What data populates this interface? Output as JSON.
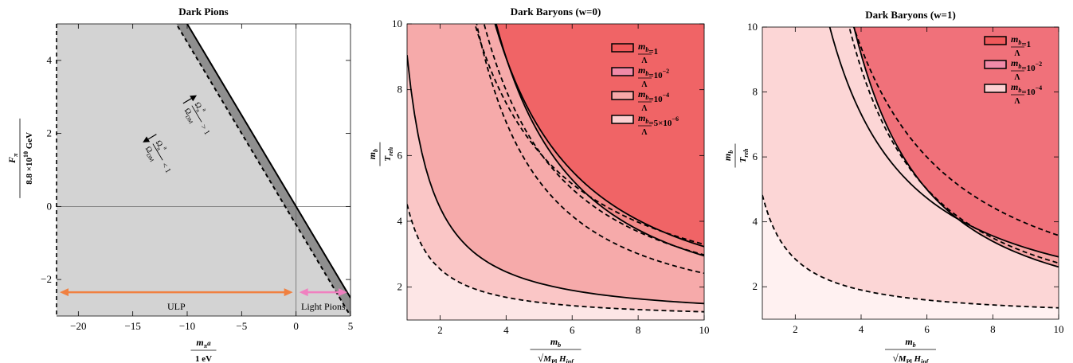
{
  "chart_data": [
    {
      "type": "area",
      "title": "Dark Pions",
      "xlabel": {
        "num": "m",
        "num_sub": "π",
        "num_sup": "a",
        "den": "1 eV"
      },
      "ylabel": {
        "num": "F",
        "num_sub": "π",
        "den_pre": "8.8 ×10",
        "den_sup": "10",
        "den_post": " GeV"
      },
      "xlim": [
        -22,
        5
      ],
      "ylim": [
        -3,
        5
      ],
      "xticks": [
        -20,
        -15,
        -10,
        -5,
        0,
        5
      ],
      "yticks": [
        -2,
        0,
        2,
        4
      ],
      "colors": {
        "light_region": "#d3d3d3",
        "band": "#8f8f8f",
        "orange": "#f08040",
        "pink": "#f080c0"
      },
      "solid_line": {
        "slope": -0.5,
        "intercept": 0
      },
      "dashed_line": {
        "slope": -0.5,
        "intercept": -0.5
      },
      "annotations": [
        {
          "id": "above",
          "num": "Ω",
          "num_sub": "π",
          "num_sup": "a",
          "den": "Ω",
          "den_sub": "DM",
          "rel": "> 1",
          "x": -10.5,
          "y": 2.8
        },
        {
          "id": "below",
          "num": "Ω",
          "num_sub": "π",
          "num_sup": "a",
          "den": "Ω",
          "den_sub": "DM",
          "rel": "< 1",
          "x": -12.7,
          "y": 2.0
        }
      ],
      "ranges": [
        {
          "label": "ULP",
          "x": [
            -22,
            0
          ],
          "y": -2.35,
          "color": "#f08040"
        },
        {
          "label": "Light Pions",
          "x": [
            0,
            5
          ],
          "y": -2.35,
          "color": "#f080c0"
        }
      ],
      "reference_lines": {
        "x": 0,
        "y": 0
      }
    },
    {
      "type": "area",
      "title": "Dark Baryons (w=0)",
      "xlabel": {
        "num": "m",
        "num_sub": "b",
        "den_pre": "√",
        "den": "M",
        "den_sub1": "Pl",
        "den_mid": " H",
        "den_sub2": "inf"
      },
      "ylabel": {
        "num": "m",
        "num_sub": "b",
        "den": "T",
        "den_sub": "reh"
      },
      "xlim": [
        1,
        10
      ],
      "ylim": [
        1,
        10
      ],
      "xticks": [
        2,
        4,
        6,
        8,
        10
      ],
      "yticks": [
        2,
        4,
        6,
        8,
        10
      ],
      "legend_position": "top-right",
      "legend": [
        {
          "label": "=1",
          "swatch": "#f0585a"
        },
        {
          "label": "=10",
          "sup": "−2",
          "swatch": "#f08aa8"
        },
        {
          "label": "=10",
          "sup": "−4",
          "swatch": "#f7a8a8"
        },
        {
          "label": "=5×10",
          "sup": "−6",
          "swatch": "#fcd0d2"
        }
      ],
      "legend_frac": {
        "num": "m",
        "num_sub": "b",
        "den": "Λ"
      },
      "region_colors": [
        "#f06466",
        "#f38b8a",
        "#f6aaaa",
        "#fac6c6",
        "#fde6e6"
      ],
      "curves": [
        {
          "style": "dashed",
          "k": 2.3,
          "c": 1.0,
          "p": 1.15
        },
        {
          "style": "solid",
          "k": 2.2,
          "c": 1.03,
          "p": 1.4
        },
        {
          "style": "dashed",
          "k": 1.92,
          "c": 1.06,
          "p": 1.4
        },
        {
          "style": "solid",
          "k": 1.92,
          "c": 1.03,
          "p": 1.55
        },
        {
          "style": "dashed",
          "k": 1.38,
          "c": 1.04,
          "p": 1.6
        },
        {
          "style": "solid",
          "k": 0.45,
          "c": 1.05,
          "p": 1.25
        },
        {
          "style": "dashed",
          "k": 0.22,
          "c": 1.03,
          "p": 1.2
        }
      ]
    },
    {
      "type": "area",
      "title": "Dark Baryons (w=1)",
      "xlabel": {
        "num": "m",
        "num_sub": "b",
        "den_pre": "√",
        "den": "M",
        "den_sub1": "Pl",
        "den_mid": " H",
        "den_sub2": "inf"
      },
      "ylabel": {
        "num": "m",
        "num_sub": "b",
        "den": "T",
        "den_sub": "reh"
      },
      "xlim": [
        1,
        10
      ],
      "ylim": [
        1,
        10
      ],
      "xticks": [
        2,
        4,
        6,
        8,
        10
      ],
      "yticks": [
        2,
        4,
        6,
        8,
        10
      ],
      "legend_position": "top-right",
      "legend": [
        {
          "label": "=1",
          "swatch": "#f0585a"
        },
        {
          "label": "=10",
          "sup": "−2",
          "swatch": "#f08aa8"
        },
        {
          "label": "=10",
          "sup": "−4",
          "swatch": "#fcd0d2"
        }
      ],
      "legend_frac": {
        "num": "m",
        "num_sub": "b",
        "den": "Λ"
      },
      "region_colors": [
        "#f0717a",
        "#f6a5a5",
        "#fcd6d6",
        "#fff1f1"
      ],
      "curves": [
        {
          "style": "dashed",
          "k": 2.7,
          "c": 0.88,
          "p": 1.25
        },
        {
          "style": "solid",
          "k": 1.92,
          "c": 1.0,
          "p": 1.3
        },
        {
          "style": "dashed",
          "k": 1.8,
          "c": 0.93,
          "p": 1.6
        },
        {
          "style": "solid",
          "k": 1.65,
          "c": 0.96,
          "p": 1.75
        },
        {
          "style": "dashed",
          "k": 0.34,
          "c": 1.01,
          "p": 1.05
        }
      ]
    }
  ]
}
